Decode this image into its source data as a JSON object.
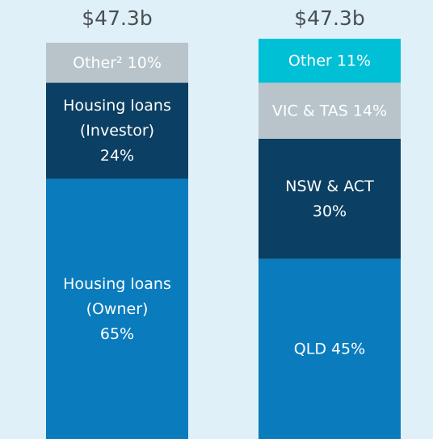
{
  "chart_data": {
    "type": "stacked-bar",
    "bars": [
      {
        "total_label": "$47.3b",
        "segments": [
          {
            "name": [
              "Housing loans",
              "(Owner)"
            ],
            "value": 65,
            "value_label": "65%",
            "color": "#0a7bbd"
          },
          {
            "name": [
              "Housing loans",
              "(Investor)"
            ],
            "value": 24,
            "value_label": "24%",
            "color": "#0b3f63"
          },
          {
            "name": [
              "Other²"
            ],
            "value": 10,
            "value_label": "10%",
            "color": "#b8c4ca"
          }
        ]
      },
      {
        "total_label": "$47.3b",
        "segments": [
          {
            "name": [
              "QLD"
            ],
            "value": 45,
            "value_label": "45%",
            "color": "#0a7bbd"
          },
          {
            "name": [
              "NSW & ACT"
            ],
            "value": 30,
            "value_label": "30%",
            "color": "#0b3f63"
          },
          {
            "name": [
              "VIC & TAS"
            ],
            "value": 14,
            "value_label": "14%",
            "color": "#b8c4ca"
          },
          {
            "name": [
              "Other"
            ],
            "value": 11,
            "value_label": "11%",
            "color": "#00c0d6"
          }
        ]
      }
    ]
  }
}
